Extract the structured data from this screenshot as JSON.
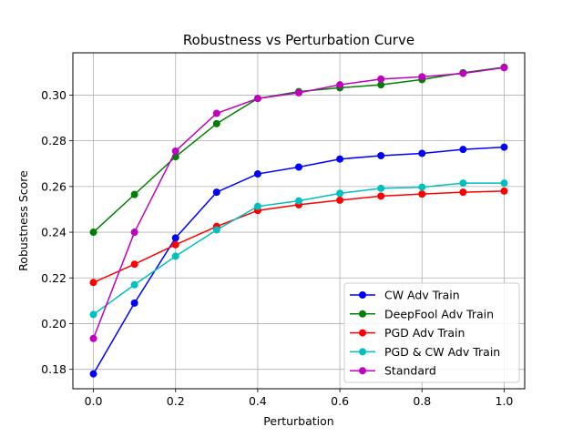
{
  "chart_data": {
    "type": "line",
    "title": "Robustness vs Perturbation Curve",
    "xlabel": "Perturbation",
    "ylabel": "Robustness Score",
    "xlim": [
      -0.05,
      1.05
    ],
    "ylim": [
      0.1715,
      0.3185
    ],
    "xticks": [
      0.0,
      0.2,
      0.4,
      0.6,
      0.8,
      1.0
    ],
    "xtick_labels": [
      "0.0",
      "0.2",
      "0.4",
      "0.6",
      "0.8",
      "1.0"
    ],
    "yticks": [
      0.18,
      0.2,
      0.22,
      0.24,
      0.26,
      0.28,
      0.3
    ],
    "ytick_labels": [
      "0.18",
      "0.20",
      "0.22",
      "0.24",
      "0.26",
      "0.28",
      "0.30"
    ],
    "grid": true,
    "legend_position": "bottom-right",
    "x": [
      0.0,
      0.1,
      0.2,
      0.3,
      0.4,
      0.5,
      0.6,
      0.7,
      0.8,
      0.9,
      1.0
    ],
    "series": [
      {
        "name": "CW Adv Train",
        "color": "#0000ff",
        "values": [
          0.178,
          0.209,
          0.2375,
          0.2575,
          0.2655,
          0.2685,
          0.272,
          0.2735,
          0.2745,
          0.2762,
          0.2772
        ]
      },
      {
        "name": "DeepFool Adv Train",
        "color": "#008000",
        "values": [
          0.24,
          0.2565,
          0.273,
          0.2875,
          0.2985,
          0.3015,
          0.3032,
          0.3045,
          0.3068,
          0.3098,
          0.3122
        ]
      },
      {
        "name": "PGD Adv Train",
        "color": "#ff0000",
        "values": [
          0.218,
          0.226,
          0.2345,
          0.2425,
          0.2495,
          0.252,
          0.254,
          0.2558,
          0.2567,
          0.2575,
          0.258
        ]
      },
      {
        "name": "PGD & CW Adv Train",
        "color": "#00bfbf",
        "values": [
          0.204,
          0.217,
          0.2295,
          0.241,
          0.2513,
          0.2537,
          0.257,
          0.2592,
          0.2597,
          0.2615,
          0.2615
        ]
      },
      {
        "name": "Standard",
        "color": "#bf00bf",
        "values": [
          0.1935,
          0.24,
          0.2755,
          0.292,
          0.2985,
          0.301,
          0.3045,
          0.307,
          0.308,
          0.3095,
          0.312
        ]
      }
    ]
  }
}
